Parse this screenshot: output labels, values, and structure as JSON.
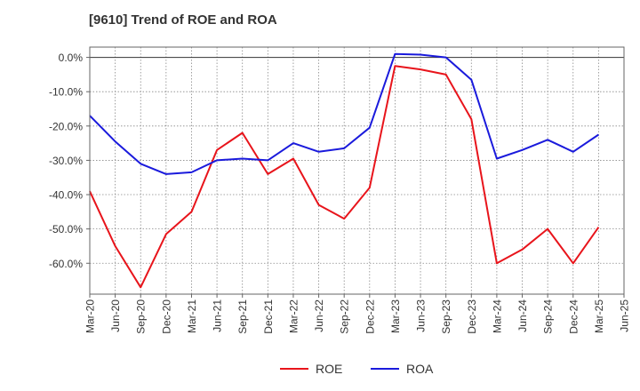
{
  "chart_data": {
    "type": "line",
    "title": "[9610]  Trend of ROE and ROA",
    "xlabel": "",
    "ylabel": "",
    "ylim": [
      -69,
      3
    ],
    "y_ticks": [
      0,
      -10,
      -20,
      -30,
      -40,
      -50,
      -60
    ],
    "y_tick_labels": [
      "0.0%",
      "-10.0%",
      "-20.0%",
      "-30.0%",
      "-40.0%",
      "-50.0%",
      "-60.0%"
    ],
    "x_tick_labels": [
      "Mar-20",
      "Jun-20",
      "Sep-20",
      "Dec-20",
      "Mar-21",
      "Jun-21",
      "Sep-21",
      "Dec-21",
      "Mar-22",
      "Jun-22",
      "Sep-22",
      "Dec-22",
      "Mar-23",
      "Jun-23",
      "Sep-23",
      "Dec-23",
      "Mar-24",
      "Jun-24",
      "Sep-24",
      "Dec-24",
      "Mar-25",
      "Jun-25"
    ],
    "grid": true,
    "legend_position": "bottom-center",
    "series": [
      {
        "name": "ROE",
        "color": "#e8141b",
        "values": [
          -39.0,
          -55.0,
          -67.0,
          -51.5,
          -45.0,
          -27.0,
          -22.0,
          -34.0,
          -29.5,
          -43.0,
          -47.0,
          -38.0,
          -2.5,
          -3.5,
          -5.0,
          -18.0,
          -60.0,
          -56.0,
          -50.0,
          -60.0,
          -49.5,
          null
        ]
      },
      {
        "name": "ROA",
        "color": "#1a1adc",
        "values": [
          -17.0,
          -24.5,
          -31.0,
          -34.0,
          -33.5,
          -30.0,
          -29.5,
          -30.0,
          -25.0,
          -27.5,
          -26.5,
          -20.5,
          1.0,
          0.8,
          0.0,
          -6.5,
          -29.5,
          -27.0,
          -24.0,
          -27.5,
          -22.5,
          null
        ]
      }
    ]
  }
}
